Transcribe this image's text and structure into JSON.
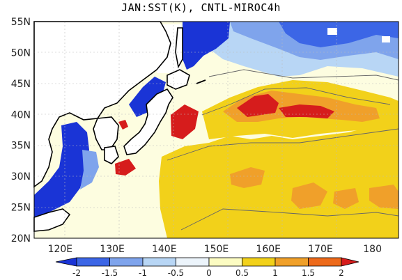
{
  "title": "JAN:SST(K), CNTL-MIROC4h",
  "map": {
    "lat_ticks": [
      "20N",
      "25N",
      "30N",
      "35N",
      "40N",
      "45N",
      "50N",
      "55N"
    ],
    "lon_ticks": [
      "120E",
      "130E",
      "140E",
      "150E",
      "160E",
      "170E",
      "180"
    ],
    "lat_range": [
      20,
      55
    ],
    "lon_range": [
      115,
      185
    ],
    "gridlines": true
  },
  "colorbar": {
    "labels": [
      "-2",
      "-1.5",
      "-1",
      "-0.5",
      "0",
      "0.5",
      "1",
      "1.5",
      "2"
    ],
    "colors": [
      "#1a34d6",
      "#3c66e6",
      "#7fa4ec",
      "#b8d6f5",
      "#ecf4fb",
      "#fcfcc2",
      "#f2d11a",
      "#f0a02a",
      "#ed6a1b",
      "#d61c1c"
    ]
  }
}
